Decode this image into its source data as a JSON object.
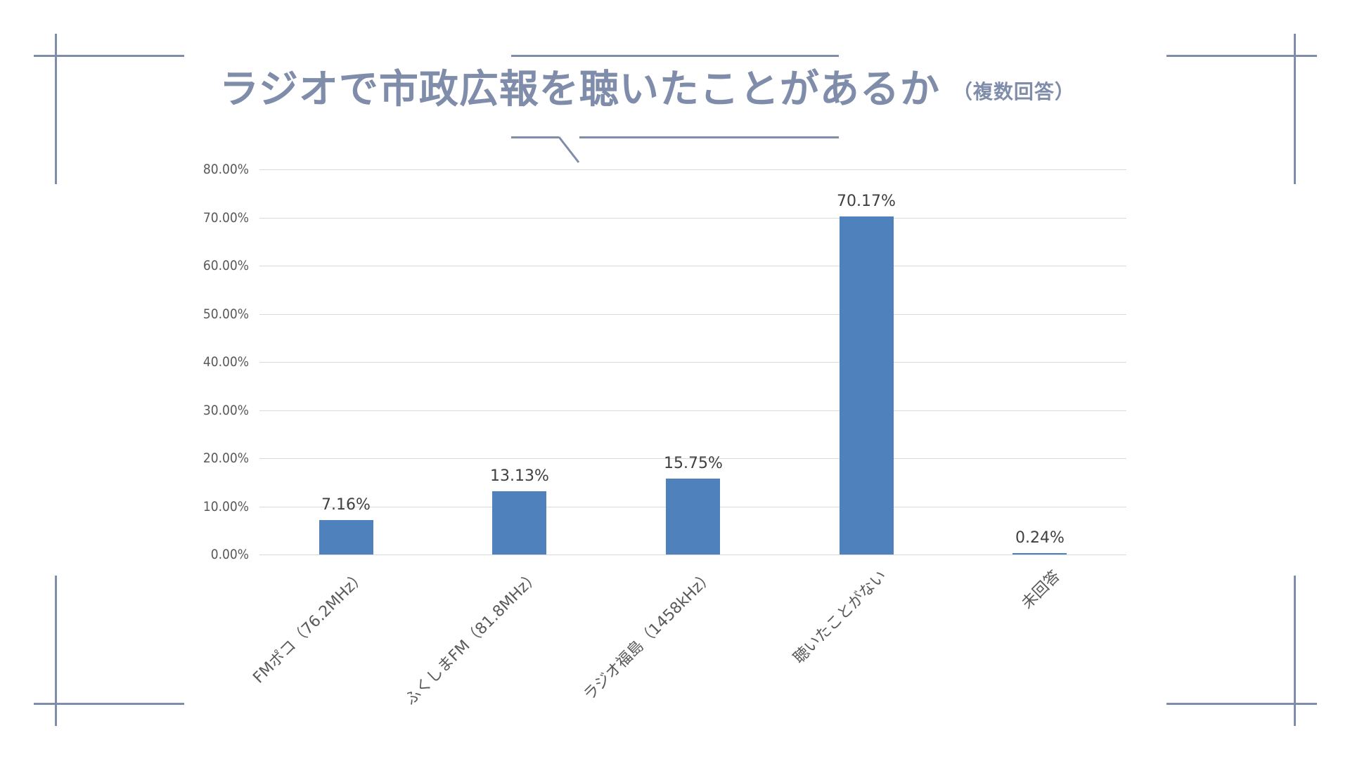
{
  "title": {
    "main": "ラジオで市政広報を聴いたことがあるか",
    "sub": "（複数回答）",
    "color": "#7F8CAA"
  },
  "chart_data": {
    "type": "bar",
    "title": "ラジオで市政広報を聴いたことがあるか（複数回答）",
    "xlabel": "",
    "ylabel": "",
    "categories": [
      "FMポコ（76.2MHz）",
      "ふくしまFM（81.8MHz）",
      "ラジオ福島（1458kHz）",
      "聴いたことがない",
      "未回答"
    ],
    "values": [
      7.16,
      13.13,
      15.75,
      70.17,
      0.24
    ],
    "value_labels": [
      "7.16%",
      "13.13%",
      "15.75%",
      "70.17%",
      "0.24%"
    ],
    "ylim": [
      0,
      80
    ],
    "yticks": [
      "0.00%",
      "10.00%",
      "20.00%",
      "30.00%",
      "40.00%",
      "50.00%",
      "60.00%",
      "70.00%",
      "80.00%"
    ],
    "grid": true,
    "legend": "none",
    "bar_color": "#4F81BD"
  }
}
